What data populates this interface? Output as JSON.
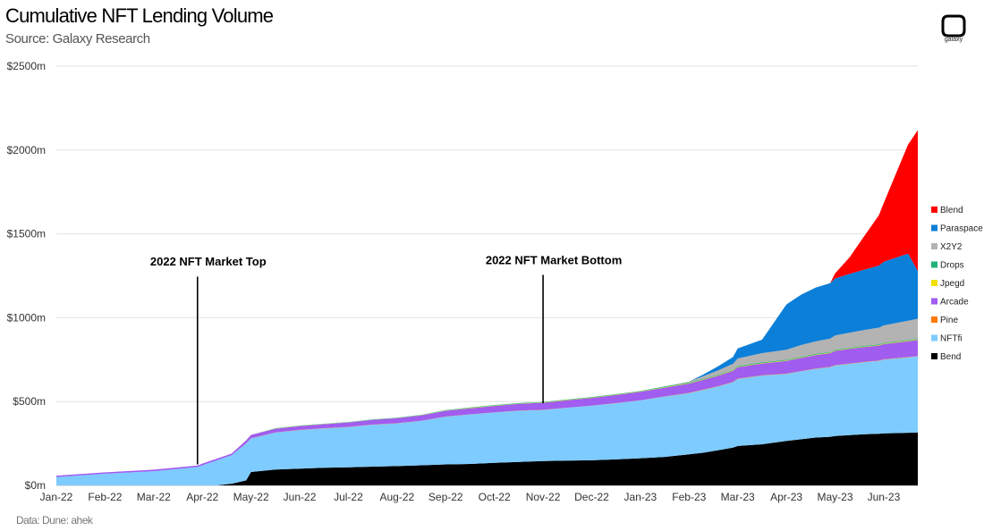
{
  "header": {
    "title": "Cumulative NFT Lending Volume",
    "subtitle": "Source: Galaxy Research",
    "logo_text": "galaxy"
  },
  "footer": {
    "note": "Data: Dune: ahek"
  },
  "chart_data": {
    "type": "area",
    "stacked": true,
    "title": "Cumulative NFT Lending Volume",
    "xlabel": "",
    "ylabel": "",
    "ylim": [
      0,
      2500
    ],
    "yticks": [
      0,
      500,
      1000,
      1500,
      2000,
      2500
    ],
    "ytick_labels": [
      "$0m",
      "$500m",
      "$1000m",
      "$1500m",
      "$2000m",
      "$2500m"
    ],
    "x": [
      0,
      1,
      2,
      2.9,
      3,
      3.3,
      3.6,
      3.9,
      4,
      4.5,
      5,
      5.5,
      6,
      6.5,
      7,
      7.5,
      8,
      8.5,
      9,
      9.5,
      10,
      10.5,
      11,
      11.5,
      12,
      12.5,
      13,
      13.3,
      13.6,
      13.9,
      14,
      14.5,
      15,
      15.3,
      15.6,
      15.9,
      16,
      16.3,
      16.6,
      16.9,
      17,
      17.25,
      17.5,
      17.7
    ],
    "xlim": [
      0,
      17.7
    ],
    "xticks": [
      0,
      1,
      2,
      3,
      4,
      5,
      6,
      7,
      8,
      9,
      10,
      11,
      12,
      13,
      14,
      15,
      16,
      17
    ],
    "xtick_labels": [
      "Jan-22",
      "Feb-22",
      "Mar-22",
      "Apr-22",
      "May-22",
      "Jun-22",
      "Jul-22",
      "Aug-22",
      "Sep-22",
      "Oct-22",
      "Nov-22",
      "Dec-22",
      "Jan-23",
      "Feb-23",
      "Mar-23",
      "Apr-23",
      "May-23",
      "Jun-23"
    ],
    "series": [
      {
        "name": "Bend",
        "color": "#000000",
        "values": [
          0,
          0,
          0,
          0,
          0,
          0,
          10,
          30,
          80,
          95,
          100,
          105,
          108,
          112,
          115,
          120,
          125,
          128,
          135,
          140,
          145,
          148,
          150,
          155,
          162,
          170,
          185,
          195,
          210,
          225,
          235,
          245,
          265,
          275,
          285,
          290,
          295,
          300,
          305,
          308,
          310,
          312,
          314,
          315
        ]
      },
      {
        "name": "NFTfi",
        "color": "#7ecbff",
        "values": [
          50,
          70,
          85,
          110,
          120,
          150,
          170,
          220,
          200,
          220,
          230,
          235,
          240,
          250,
          255,
          265,
          285,
          295,
          300,
          305,
          305,
          315,
          325,
          335,
          345,
          360,
          365,
          375,
          380,
          390,
          400,
          410,
          400,
          405,
          410,
          415,
          420,
          425,
          430,
          435,
          440,
          445,
          450,
          455
        ]
      },
      {
        "name": "Pine",
        "color": "#ff7a00",
        "values": [
          0,
          0,
          0,
          0,
          0,
          0,
          0,
          1,
          1,
          1,
          1,
          1,
          1,
          1,
          1,
          1,
          1,
          1,
          1,
          1,
          1,
          1,
          1,
          1,
          1,
          1,
          2,
          2,
          2,
          2,
          2,
          2,
          2,
          2,
          2,
          2,
          2,
          2,
          2,
          2,
          2,
          2,
          2,
          2
        ]
      },
      {
        "name": "Arcade",
        "color": "#a15cf0",
        "values": [
          8,
          8,
          9,
          9,
          10,
          10,
          10,
          18,
          20,
          22,
          23,
          24,
          26,
          28,
          30,
          32,
          34,
          36,
          38,
          40,
          42,
          44,
          46,
          48,
          50,
          52,
          55,
          58,
          62,
          66,
          68,
          70,
          75,
          78,
          80,
          82,
          85,
          87,
          88,
          89,
          90,
          92,
          94,
          95
        ]
      },
      {
        "name": "Jpegd",
        "color": "#f0e000",
        "values": [
          0,
          0,
          0,
          0,
          0,
          0,
          0,
          0,
          0,
          1,
          1,
          1,
          1,
          1,
          1,
          1,
          1,
          2,
          2,
          2,
          2,
          2,
          2,
          2,
          2,
          3,
          3,
          3,
          3,
          3,
          3,
          3,
          3,
          3,
          3,
          3,
          3,
          3,
          3,
          3,
          3,
          3,
          3,
          3
        ]
      },
      {
        "name": "Drops",
        "color": "#1fb37a",
        "values": [
          0,
          0,
          0,
          0,
          0,
          0,
          0,
          0,
          0,
          2,
          2,
          2,
          2,
          2,
          2,
          2,
          3,
          3,
          3,
          3,
          3,
          3,
          3,
          3,
          3,
          4,
          4,
          4,
          4,
          4,
          4,
          4,
          4,
          4,
          4,
          4,
          4,
          4,
          4,
          4,
          4,
          4,
          4,
          4
        ]
      },
      {
        "name": "X2Y2",
        "color": "#b3b3b3",
        "values": [
          0,
          0,
          0,
          0,
          0,
          0,
          0,
          0,
          0,
          0,
          0,
          0,
          0,
          0,
          0,
          0,
          0,
          0,
          0,
          0,
          0,
          0,
          0,
          0,
          0,
          0,
          5,
          15,
          25,
          35,
          45,
          55,
          60,
          70,
          75,
          80,
          85,
          90,
          95,
          100,
          105,
          110,
          115,
          120
        ]
      },
      {
        "name": "Paraspace",
        "color": "#0c7fd9",
        "values": [
          0,
          0,
          0,
          0,
          0,
          0,
          0,
          0,
          0,
          0,
          0,
          0,
          0,
          0,
          0,
          0,
          0,
          0,
          0,
          0,
          0,
          0,
          0,
          0,
          0,
          0,
          0,
          10,
          25,
          40,
          60,
          80,
          270,
          300,
          320,
          330,
          340,
          350,
          360,
          370,
          380,
          390,
          400,
          285
        ]
      },
      {
        "name": "Blend",
        "color": "#ff0000",
        "values": [
          0,
          0,
          0,
          0,
          0,
          0,
          0,
          0,
          0,
          0,
          0,
          0,
          0,
          0,
          0,
          0,
          0,
          0,
          0,
          0,
          0,
          0,
          0,
          0,
          0,
          0,
          0,
          0,
          0,
          0,
          0,
          0,
          0,
          0,
          0,
          0,
          30,
          100,
          200,
          300,
          350,
          500,
          650,
          840
        ]
      }
    ],
    "annotations": [
      {
        "text": "2022 NFT Market Top",
        "x": 2.9,
        "label_value": 1310,
        "line_top": 1245,
        "line_bottom": 125
      },
      {
        "text": "2022 NFT Market Bottom",
        "x": 10.0,
        "label_value": 1320,
        "line_top": 1255,
        "line_bottom": 490
      }
    ],
    "legend_position": "right",
    "legend_order": [
      "Blend",
      "Paraspace",
      "X2Y2",
      "Drops",
      "Jpegd",
      "Arcade",
      "Pine",
      "NFTfi",
      "Bend"
    ],
    "grid": true
  }
}
